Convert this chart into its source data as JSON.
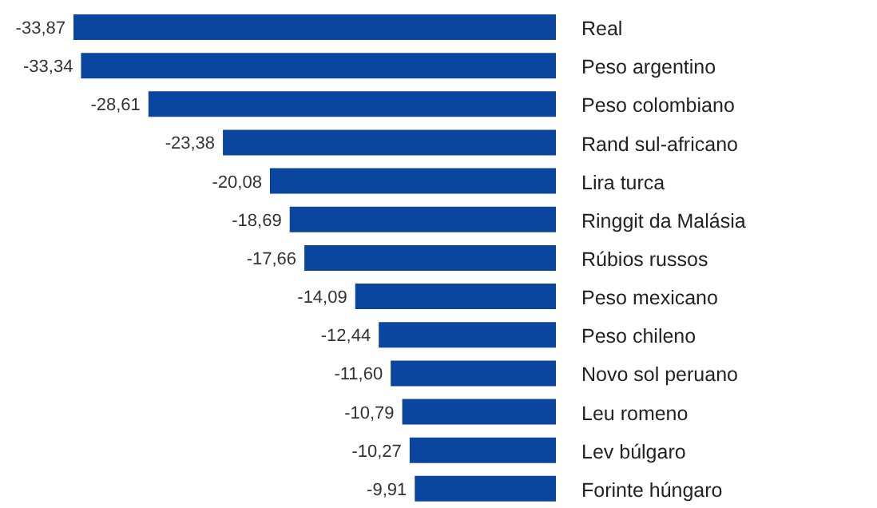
{
  "chart_data": {
    "type": "bar",
    "orientation": "horizontal",
    "categories": [
      "Real",
      "Peso argentino",
      "Peso colombiano",
      "Rand sul-africano",
      "Lira turca",
      "Ringgit da Malásia",
      "Rúbios russos",
      "Peso mexicano",
      "Peso chileno",
      "Novo sol peruano",
      "Leu romeno",
      "Lev búlgaro",
      "Forinte húngaro"
    ],
    "values": [
      -33.87,
      -33.34,
      -28.61,
      -23.38,
      -20.08,
      -18.69,
      -17.66,
      -14.09,
      -12.44,
      -11.6,
      -10.79,
      -10.27,
      -9.91
    ],
    "value_labels": [
      "-33,87",
      "-33,34",
      "-28,61",
      "-23,38",
      "-20,08",
      "-18,69",
      "-17,66",
      "-14,09",
      "-12,44",
      "-11,60",
      "-10,79",
      "-10,27",
      "-9,91"
    ],
    "color": "#0a46a0",
    "grid": false,
    "legend": false
  }
}
